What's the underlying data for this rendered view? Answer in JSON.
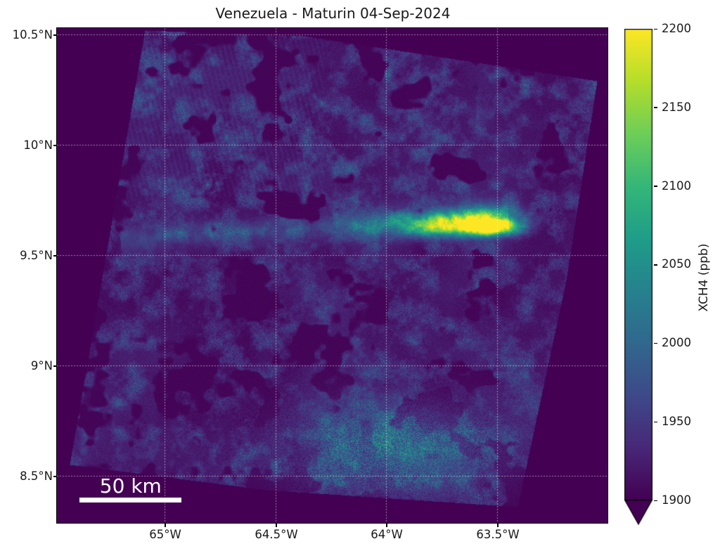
{
  "figure": {
    "title": "Venezuela - Maturin 04-Sep-2024",
    "background_color": "#ffffff",
    "text_color": "#1a1a1a"
  },
  "chart_data": {
    "type": "heatmap",
    "title": "Venezuela - Maturin 04-Sep-2024",
    "location": "Venezuela - Maturin",
    "date": "04-Sep-2024",
    "x_axis": {
      "ticks": [
        "65°W",
        "64.5°W",
        "64°W",
        "63.5°W"
      ],
      "tick_values_deg_west": [
        65.0,
        64.5,
        64.0,
        63.5
      ],
      "range_deg_west": [
        65.49,
        63.0
      ]
    },
    "y_axis": {
      "ticks": [
        "10.5°N",
        "10°N",
        "9.5°N",
        "9°N",
        "8.5°N"
      ],
      "tick_values_deg_north": [
        10.5,
        10.0,
        9.5,
        9.0,
        8.5
      ],
      "range_deg_north": [
        8.29,
        10.51
      ]
    },
    "colorbar": {
      "label": "XCH4 (ppb)",
      "min": 1900,
      "max": 2200,
      "ticks": [
        2200,
        2150,
        2100,
        2050,
        2000,
        1950,
        1900
      ],
      "colormap": "viridis",
      "extend": "min",
      "extend_color": "#440154"
    },
    "scale_bar": {
      "label": "50 km",
      "km": 50
    },
    "gridlines": {
      "visible": true,
      "color": "rgba(255,255,255,0.5)"
    },
    "plot_background_color": "#440154",
    "background_value_ppb": 1915,
    "features": [
      {
        "name": "methane-plume-core",
        "lon_w": 63.67,
        "lat_n": 9.64,
        "xch4_ppb": 2180
      },
      {
        "name": "methane-plume-max",
        "lon_w": 63.53,
        "lat_n": 9.62,
        "xch4_ppb": 2200
      },
      {
        "name": "enhancement-band",
        "from": {
          "lon_w": 65.2,
          "lat_n": 9.57
        },
        "to": {
          "lon_w": 63.45,
          "lat_n": 9.68
        },
        "xch4_ppb": 2060
      },
      {
        "name": "southern-enhancement",
        "lon_w": 63.97,
        "lat_n": 8.62,
        "xch4_ppb": 2030
      }
    ]
  }
}
